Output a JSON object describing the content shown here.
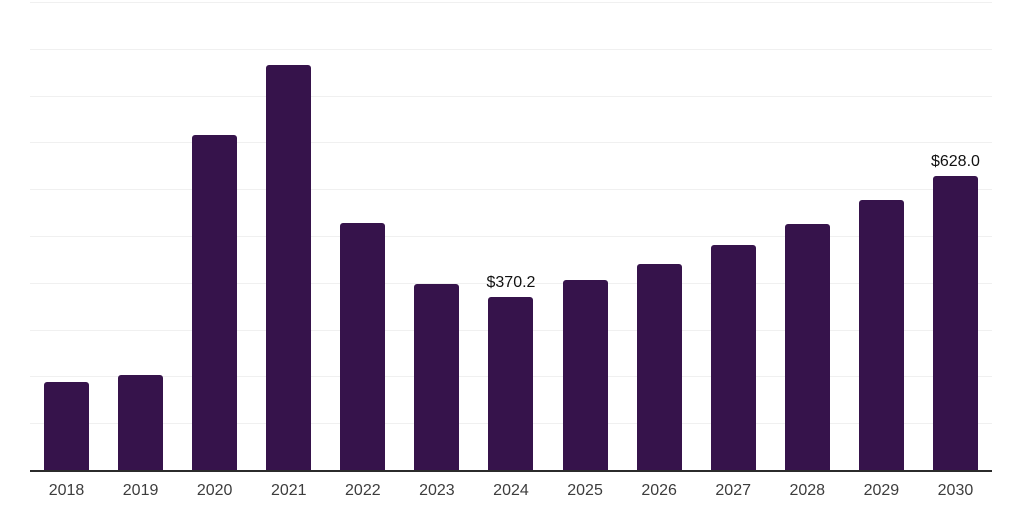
{
  "page": {
    "background": "#ffffff"
  },
  "chart_data": {
    "type": "bar",
    "title": "",
    "xlabel": "",
    "ylabel": "",
    "categories": [
      "2018",
      "2019",
      "2020",
      "2021",
      "2022",
      "2023",
      "2024",
      "2025",
      "2026",
      "2027",
      "2028",
      "2029",
      "2030"
    ],
    "values": [
      187,
      203,
      716,
      865,
      527,
      398,
      370.2,
      405,
      441,
      480,
      526,
      576,
      628.0
    ],
    "data_labels": [
      null,
      null,
      null,
      null,
      null,
      null,
      "$370.2",
      null,
      null,
      null,
      null,
      null,
      "$628.0"
    ],
    "ylim": [
      0,
      1000
    ],
    "grid": {
      "visible": true,
      "interval": 100,
      "lines": 10
    },
    "legend_position": "none",
    "y_tick_labels_visible": false,
    "colors": {
      "bar": "#36134b",
      "gridline": "#f0f0f0",
      "axis_line": "#2b2b2b",
      "tick_label": "#3d3d3d",
      "data_label": "#111111"
    }
  }
}
